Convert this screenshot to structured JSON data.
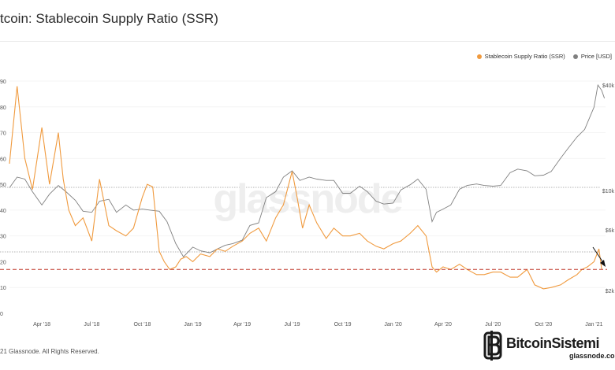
{
  "header": {
    "title": "tcoin: Stablecoin Supply Ratio (SSR)"
  },
  "legend": [
    {
      "label": "Stablecoin Supply Ratio (SSR)",
      "color": "#f09a3e"
    },
    {
      "label": "Price [USD]",
      "color": "#808080"
    }
  ],
  "footer": {
    "copyright": "21 Glassnode. All Rights Reserved."
  },
  "watermark": "glassnode",
  "brand": {
    "name": "BitcoinSistemi",
    "sub": "glassnode",
    "sub2": ".com"
  },
  "chart_data": {
    "type": "line",
    "x_labels": [
      "Apr '18",
      "Jul '18",
      "Oct '18",
      "Jan '19",
      "Apr '19",
      "Jul '19",
      "Oct '19",
      "Jan '20",
      "Apr '20",
      "Jul '20",
      "Oct '20",
      "Jan '21"
    ],
    "left_axis": {
      "ticks": [
        "0",
        "10",
        "20",
        "30",
        "40",
        "50",
        "60",
        "70",
        "80",
        "90"
      ],
      "ylim": [
        0,
        90
      ]
    },
    "right_axis": {
      "ticks": [
        "$2k",
        "$6k",
        "$10k",
        "$40k"
      ],
      "scale": "log"
    },
    "reference_line": {
      "value": 17,
      "style": "dashed",
      "color": "#c0392b"
    },
    "grid": true,
    "series": [
      {
        "name": "Stablecoin Supply Ratio (SSR)",
        "axis": "left",
        "color": "#f09a3e",
        "x": [
          "2018-02-01",
          "2018-02-15",
          "2018-03-01",
          "2018-03-15",
          "2018-04-01",
          "2018-04-15",
          "2018-05-01",
          "2018-05-10",
          "2018-05-20",
          "2018-06-01",
          "2018-06-15",
          "2018-07-01",
          "2018-07-15",
          "2018-08-01",
          "2018-08-15",
          "2018-09-01",
          "2018-09-15",
          "2018-10-01",
          "2018-10-10",
          "2018-10-20",
          "2018-11-01",
          "2018-11-10",
          "2018-11-20",
          "2018-12-01",
          "2018-12-10",
          "2018-12-20",
          "2019-01-01",
          "2019-01-15",
          "2019-02-01",
          "2019-02-15",
          "2019-03-01",
          "2019-03-15",
          "2019-04-01",
          "2019-04-15",
          "2019-05-01",
          "2019-05-15",
          "2019-06-01",
          "2019-06-15",
          "2019-07-01",
          "2019-07-10",
          "2019-07-20",
          "2019-08-01",
          "2019-08-15",
          "2019-09-01",
          "2019-09-15",
          "2019-10-01",
          "2019-10-15",
          "2019-11-01",
          "2019-11-15",
          "2019-12-01",
          "2019-12-15",
          "2020-01-01",
          "2020-01-15",
          "2020-02-01",
          "2020-02-15",
          "2020-03-01",
          "2020-03-12",
          "2020-03-20",
          "2020-04-01",
          "2020-04-15",
          "2020-05-01",
          "2020-05-15",
          "2020-06-01",
          "2020-06-15",
          "2020-07-01",
          "2020-07-15",
          "2020-08-01",
          "2020-08-15",
          "2020-09-01",
          "2020-09-15",
          "2020-10-01",
          "2020-10-15",
          "2020-11-01",
          "2020-11-15",
          "2020-12-01",
          "2020-12-10",
          "2020-12-20",
          "2021-01-01",
          "2021-01-10",
          "2021-01-15"
        ],
        "y": [
          58,
          88,
          60,
          48,
          72,
          50,
          70,
          52,
          40,
          34,
          37,
          28,
          52,
          34,
          32,
          30,
          33,
          45,
          50,
          49,
          24,
          20,
          17,
          18,
          21,
          22,
          20,
          23,
          22,
          25,
          24,
          26,
          28,
          31,
          33,
          28,
          37,
          42,
          55,
          45,
          33,
          42,
          35,
          29,
          33,
          30,
          30,
          31,
          28,
          26,
          25,
          27,
          28,
          31,
          34,
          30,
          18,
          16,
          18,
          17,
          19,
          17,
          15,
          15,
          16,
          16,
          14,
          14,
          17,
          11,
          9.5,
          10,
          11,
          13,
          15,
          17,
          18,
          20,
          25,
          17
        ]
      },
      {
        "name": "Price [USD]",
        "axis": "right",
        "color": "#808080",
        "x": [
          "2018-02-01",
          "2018-02-15",
          "2018-03-01",
          "2018-03-15",
          "2018-04-01",
          "2018-04-15",
          "2018-05-01",
          "2018-05-15",
          "2018-06-01",
          "2018-06-15",
          "2018-07-01",
          "2018-07-15",
          "2018-08-01",
          "2018-08-15",
          "2018-09-01",
          "2018-09-15",
          "2018-10-01",
          "2018-10-15",
          "2018-11-01",
          "2018-11-15",
          "2018-12-01",
          "2018-12-15",
          "2019-01-01",
          "2019-01-15",
          "2019-02-01",
          "2019-02-15",
          "2019-03-01",
          "2019-03-15",
          "2019-04-01",
          "2019-04-15",
          "2019-05-01",
          "2019-05-15",
          "2019-06-01",
          "2019-06-15",
          "2019-07-01",
          "2019-07-15",
          "2019-08-01",
          "2019-08-15",
          "2019-09-01",
          "2019-09-15",
          "2019-10-01",
          "2019-10-15",
          "2019-11-01",
          "2019-11-15",
          "2019-12-01",
          "2019-12-15",
          "2020-01-01",
          "2020-01-15",
          "2020-02-01",
          "2020-02-15",
          "2020-03-01",
          "2020-03-12",
          "2020-03-20",
          "2020-04-01",
          "2020-04-15",
          "2020-05-01",
          "2020-05-15",
          "2020-06-01",
          "2020-06-15",
          "2020-07-01",
          "2020-07-15",
          "2020-08-01",
          "2020-08-15",
          "2020-09-01",
          "2020-09-15",
          "2020-10-01",
          "2020-10-15",
          "2020-11-01",
          "2020-11-15",
          "2020-12-01",
          "2020-12-15",
          "2021-01-01",
          "2021-01-08",
          "2021-01-15",
          "2021-01-20"
        ],
        "y": [
          9000,
          10500,
          10200,
          8500,
          7000,
          8200,
          9300,
          8500,
          7500,
          6400,
          6300,
          7400,
          7600,
          6300,
          7000,
          6500,
          6600,
          6500,
          6400,
          5500,
          4000,
          3300,
          3800,
          3600,
          3500,
          3700,
          3900,
          4000,
          4200,
          5200,
          5400,
          7800,
          8500,
          10500,
          11500,
          10000,
          10500,
          10200,
          10000,
          10000,
          8300,
          8300,
          9200,
          8500,
          7400,
          7100,
          7200,
          8700,
          9400,
          10200,
          8800,
          5500,
          6300,
          6600,
          7000,
          8800,
          9300,
          9500,
          9300,
          9200,
          9300,
          11200,
          11800,
          11500,
          10700,
          10800,
          11400,
          13800,
          16000,
          18800,
          21000,
          29000,
          40000,
          37000,
          33000
        ]
      }
    ]
  }
}
